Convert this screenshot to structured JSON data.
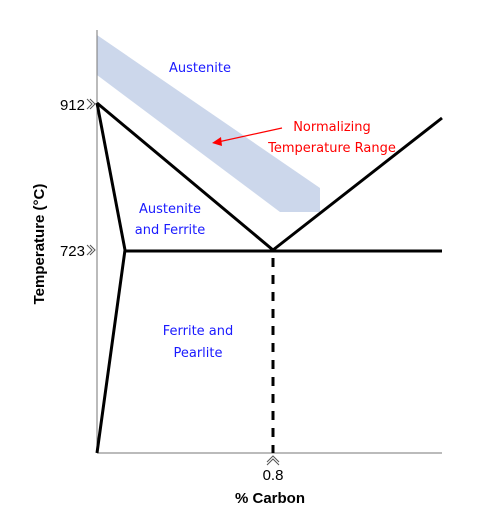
{
  "regions": {
    "austenite": "Austenite",
    "austenite_ferrite_line1": "Austenite",
    "austenite_ferrite_line2": "and Ferrite",
    "ferrite_pearlite_line1": "Ferrite and",
    "ferrite_pearlite_line2": "Pearlite"
  },
  "annotation": {
    "line1": "Normalizing",
    "line2": "Temperature Range"
  },
  "axes": {
    "y_title": "Temperature (°C)",
    "x_title": "% Carbon",
    "y_ticks": [
      "912",
      "723"
    ],
    "x_tick": "0.8"
  },
  "colors": {
    "region_text": "#1a1aff",
    "annotation_text": "#ff0000",
    "band_fill": "#c9d5ea",
    "lines": "#000000"
  }
}
